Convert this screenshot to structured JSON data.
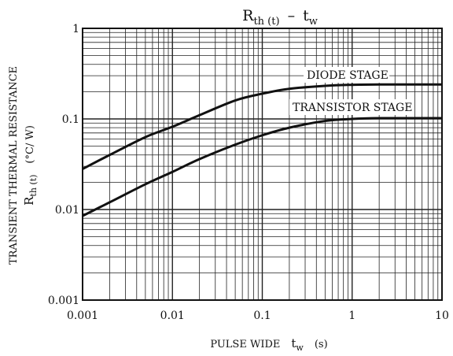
{
  "chart_data": {
    "type": "line",
    "title": {
      "main": "R",
      "main_sub": "th (t)",
      "dash": "–",
      "second": "t",
      "second_sub": "w"
    },
    "xlabel": {
      "text": "PULSE WIDE",
      "symbol": "t",
      "symbol_sub": "w",
      "unit": "(s)"
    },
    "ylabel": {
      "line1": "TRANSIENT THERMAL RESISTANCE",
      "symbol": "R",
      "symbol_sub": "th (t)",
      "unit": "(°C/ W)"
    },
    "x_scale": "log",
    "y_scale": "log",
    "xlim": [
      0.001,
      10
    ],
    "ylim": [
      0.001,
      1
    ],
    "x_ticks": [
      {
        "value": 0.001,
        "label": "0.001"
      },
      {
        "value": 0.01,
        "label": "0.01"
      },
      {
        "value": 0.1,
        "label": "0.1"
      },
      {
        "value": 1,
        "label": "1"
      },
      {
        "value": 10,
        "label": "10"
      }
    ],
    "y_ticks": [
      {
        "value": 1,
        "label": "1"
      },
      {
        "value": 0.1,
        "label": "0.1"
      },
      {
        "value": 0.01,
        "label": "0.01"
      },
      {
        "value": 0.001,
        "label": "0.001"
      }
    ],
    "grid": true,
    "series": [
      {
        "name": "DIODE STAGE",
        "x": [
          0.001,
          0.002,
          0.005,
          0.01,
          0.02,
          0.05,
          0.1,
          0.2,
          0.5,
          1,
          2,
          5,
          10
        ],
        "y": [
          0.028,
          0.04,
          0.063,
          0.082,
          0.11,
          0.16,
          0.19,
          0.215,
          0.232,
          0.238,
          0.24,
          0.24,
          0.24
        ]
      },
      {
        "name": "TRANSISTOR STAGE",
        "x": [
          0.001,
          0.002,
          0.005,
          0.01,
          0.02,
          0.05,
          0.1,
          0.2,
          0.5,
          1,
          2,
          5,
          10
        ],
        "y": [
          0.0085,
          0.012,
          0.019,
          0.026,
          0.036,
          0.052,
          0.066,
          0.08,
          0.095,
          0.1,
          0.102,
          0.102,
          0.102
        ]
      }
    ]
  }
}
